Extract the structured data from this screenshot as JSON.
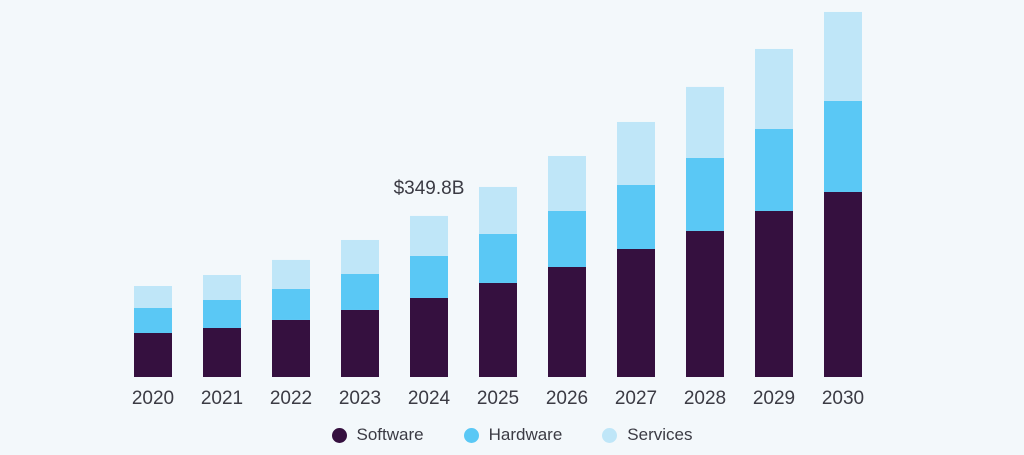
{
  "chart_data": {
    "type": "bar",
    "stacked": true,
    "title": "",
    "xlabel": "",
    "ylabel": "",
    "unit": "USD Billion",
    "categories": [
      "2020",
      "2021",
      "2022",
      "2023",
      "2024",
      "2025",
      "2026",
      "2027",
      "2028",
      "2029",
      "2030"
    ],
    "series": [
      {
        "name": "Software",
        "color": "#35103f",
        "values": [
          95.6,
          106.5,
          123.9,
          145.6,
          171.7,
          204.3,
          239.0,
          278.1,
          317.3,
          360.7,
          402.0
        ]
      },
      {
        "name": "Hardware",
        "color": "#5ac8f5",
        "values": [
          54.3,
          60.8,
          67.4,
          78.2,
          91.3,
          106.5,
          121.7,
          139.1,
          158.6,
          178.2,
          197.7
        ]
      },
      {
        "name": "Services",
        "color": "#bfe6f8",
        "values": [
          47.8,
          54.3,
          63.0,
          73.9,
          86.9,
          102.1,
          119.5,
          136.9,
          154.3,
          173.8,
          193.4
        ]
      }
    ],
    "ylim": [
      0,
      800
    ],
    "grid": false,
    "legend": "bottom-center",
    "annotations": [
      {
        "category": "2024",
        "text": "$349.8B"
      }
    ]
  }
}
